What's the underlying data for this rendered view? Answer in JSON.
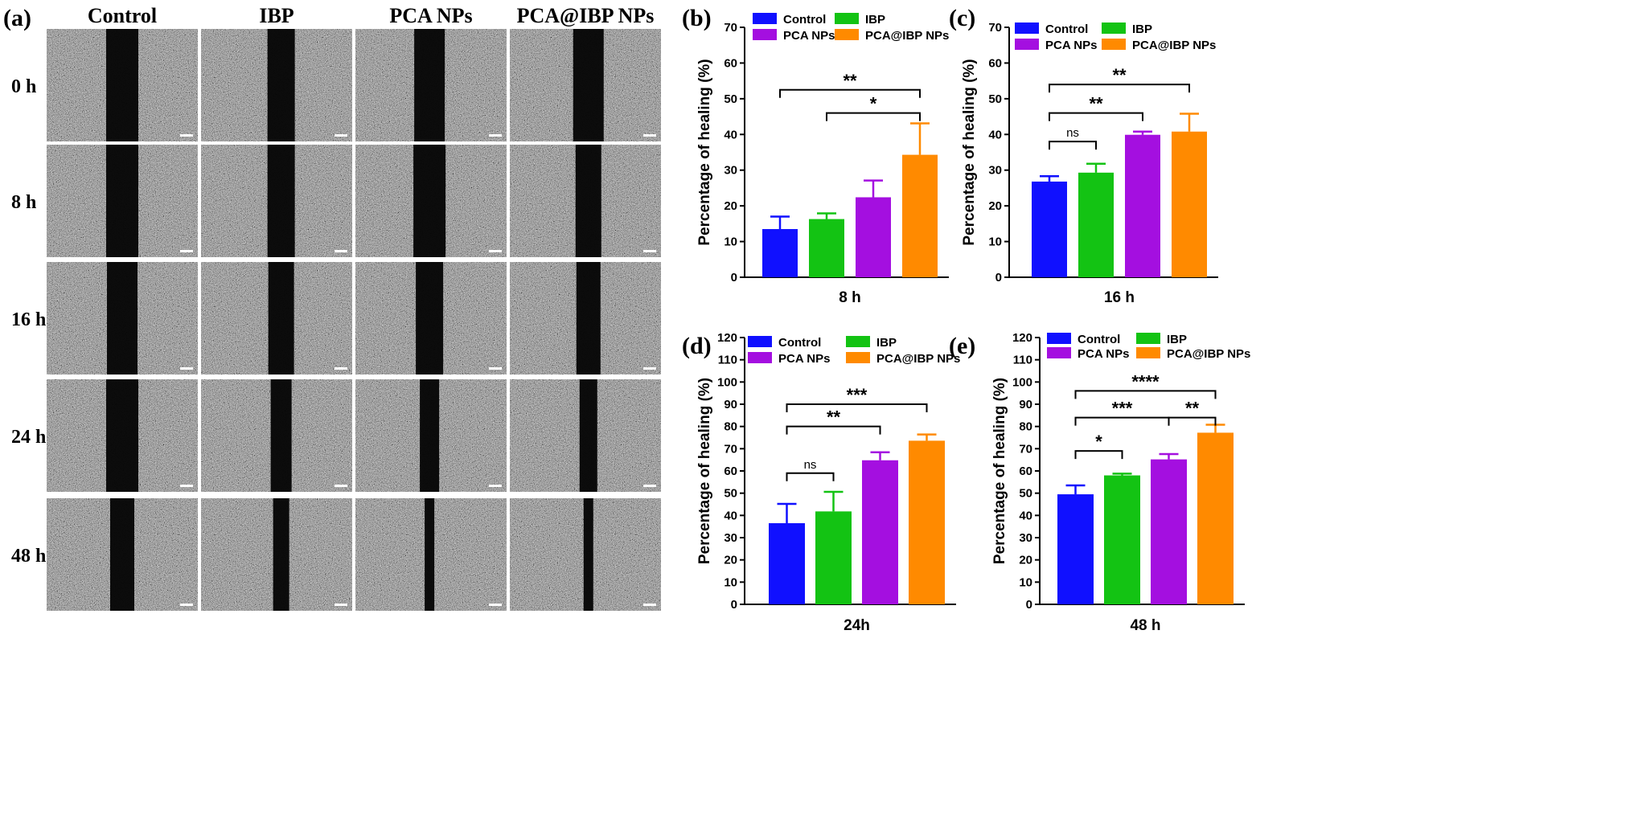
{
  "panel_a": {
    "label": "(a)",
    "columns": [
      "Control",
      "IBP",
      "PCA NPs",
      "PCA@IBP NPs"
    ],
    "rows": [
      "0 h",
      "8 h",
      "16 h",
      "24 h",
      "48 h"
    ],
    "description_note_omitted": true
  },
  "legend_labels": [
    "Control",
    "IBP",
    "PCA NPs",
    "PCA@IBP NPs"
  ],
  "colors": {
    "Control": "#1010ff",
    "IBP": "#13c313",
    "PCA NPs": "#a40fe0",
    "PCA@IBP NPs": "#ff8a00"
  },
  "chart_data": [
    {
      "label": "(b)",
      "type": "bar",
      "categories": [
        "Control",
        "IBP",
        "PCA NPs",
        "PCA@IBP NPs"
      ],
      "values": [
        13.5,
        16.3,
        22.4,
        34.3
      ],
      "errors": [
        3.5,
        1.6,
        4.7,
        8.8
      ],
      "xlabel": "8 h",
      "ylabel": "Percentage of healing (%)",
      "ylim": [
        0,
        70
      ],
      "yticks": [
        0,
        10,
        20,
        30,
        40,
        50,
        60,
        70
      ],
      "significance": [
        {
          "from": 0,
          "to": 3,
          "text": "**",
          "y": 52.5
        },
        {
          "from": 1,
          "to": 3,
          "text": "*",
          "y": 46.0
        }
      ]
    },
    {
      "label": "(c)",
      "type": "bar",
      "categories": [
        "Control",
        "IBP",
        "PCA NPs",
        "PCA@IBP NPs"
      ],
      "values": [
        26.8,
        29.3,
        39.9,
        40.8
      ],
      "errors": [
        1.5,
        2.5,
        0.9,
        5.0
      ],
      "xlabel": "16 h",
      "ylabel": "Percentage of healing (%)",
      "ylim": [
        0,
        70
      ],
      "yticks": [
        0,
        10,
        20,
        30,
        40,
        50,
        60,
        70
      ],
      "significance": [
        {
          "from": 0,
          "to": 3,
          "text": "**",
          "y": 54.0
        },
        {
          "from": 0,
          "to": 2,
          "text": "**",
          "y": 46.0
        },
        {
          "from": 0,
          "to": 1,
          "text": "ns",
          "y": 38.0
        }
      ]
    },
    {
      "label": "(d)",
      "type": "bar",
      "categories": [
        "Control",
        "IBP",
        "PCA NPs",
        "PCA@IBP NPs"
      ],
      "values": [
        36.5,
        41.8,
        64.8,
        73.6
      ],
      "errors": [
        8.7,
        8.8,
        3.6,
        2.8
      ],
      "xlabel": "24h",
      "ylabel": "Percentage of healing (%)",
      "ylim": [
        0,
        120
      ],
      "yticks": [
        0,
        10,
        20,
        30,
        40,
        50,
        60,
        70,
        80,
        90,
        100,
        110,
        120
      ],
      "significance": [
        {
          "from": 0,
          "to": 3,
          "text": "***",
          "y": 90.0
        },
        {
          "from": 0,
          "to": 2,
          "text": "**",
          "y": 80.0
        },
        {
          "from": 0,
          "to": 1,
          "text": "ns",
          "y": 59.0
        }
      ]
    },
    {
      "label": "(e)",
      "type": "bar",
      "categories": [
        "Control",
        "IBP",
        "PCA NPs",
        "PCA@IBP NPs"
      ],
      "values": [
        49.5,
        58.0,
        65.2,
        77.2
      ],
      "errors": [
        4.0,
        0.8,
        2.4,
        3.6
      ],
      "xlabel": "48 h",
      "ylabel": "Percentage of healing (%)",
      "ylim": [
        0,
        120
      ],
      "yticks": [
        0,
        10,
        20,
        30,
        40,
        50,
        60,
        70,
        80,
        90,
        100,
        110,
        120
      ],
      "significance": [
        {
          "from": 0,
          "to": 3,
          "text": "****",
          "y": 96.0
        },
        {
          "from": 0,
          "to": 2,
          "text": "***",
          "y": 84.0
        },
        {
          "from": 2,
          "to": 3,
          "text": "**",
          "y": 84.0
        },
        {
          "from": 0,
          "to": 1,
          "text": "*",
          "y": 69.0
        }
      ]
    }
  ]
}
